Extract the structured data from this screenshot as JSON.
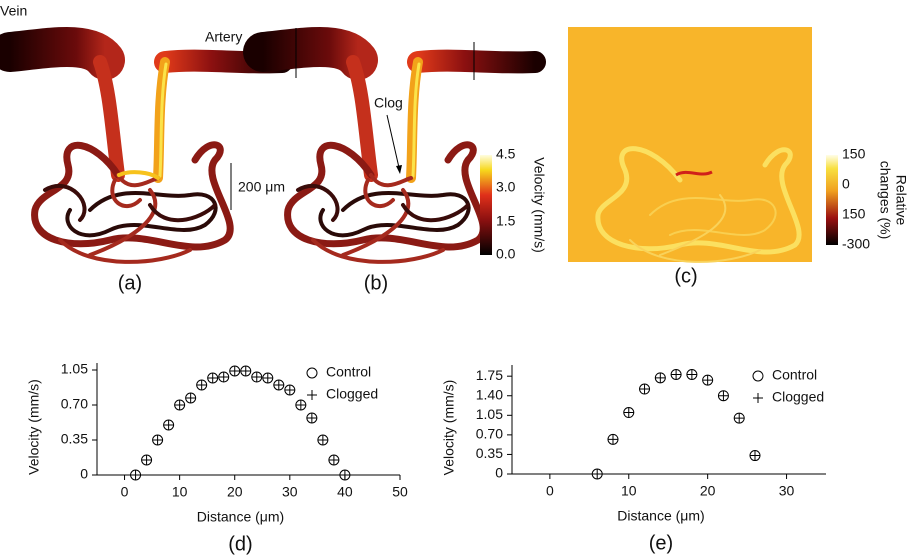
{
  "figure": {
    "vein": "Vein",
    "artery": "Artery",
    "clog": "Clog",
    "scale": "200 μm",
    "panels": [
      "(a)",
      "(b)",
      "(c)"
    ],
    "colorbar_velocity": {
      "title": "Velocity (mm/s)",
      "ticks": [
        "4.5",
        "3.0",
        "1.5",
        "0.0"
      ]
    },
    "colorbar_relative": {
      "title": [
        "Relative",
        "changes (%)"
      ],
      "ticks": [
        "150",
        "0",
        "150",
        "-300"
      ]
    }
  },
  "chart_data": [
    {
      "type": "scatter",
      "label": "(d)",
      "xlabel": "Distance (μm)",
      "ylabel": "Velocity (mm/s)",
      "xlim": [
        -5,
        50
      ],
      "ylim": [
        0,
        1.12
      ],
      "xticks": [
        0,
        10,
        20,
        30,
        40,
        50
      ],
      "yticks": [
        0,
        0.35,
        {
          "value": 0.7,
          "label": "0.70"
        },
        1.05
      ],
      "x": [
        2,
        4,
        6,
        8,
        10,
        12,
        14,
        16,
        18,
        20,
        22,
        24,
        26,
        28,
        30,
        32,
        34,
        36,
        38,
        40
      ],
      "series": [
        {
          "name": "Control",
          "marker": "circle",
          "color": "#000000",
          "values": [
            0,
            0.15,
            0.35,
            0.5,
            0.7,
            0.77,
            0.9,
            0.97,
            0.98,
            1.04,
            1.04,
            0.98,
            0.97,
            0.9,
            0.85,
            0.7,
            0.57,
            0.35,
            0.15,
            0
          ]
        },
        {
          "name": "Clogged",
          "marker": "plus",
          "color": "#000000",
          "values": [
            0,
            0.15,
            0.35,
            0.5,
            0.7,
            0.77,
            0.9,
            0.97,
            0.98,
            1.04,
            1.04,
            0.98,
            0.97,
            0.9,
            0.85,
            0.7,
            0.57,
            0.35,
            0.15,
            0
          ]
        }
      ]
    },
    {
      "type": "scatter",
      "label": "(e)",
      "xlabel": "Distance (μm)",
      "ylabel": "Velocity (mm/s)",
      "xlim": [
        -4.8,
        35
      ],
      "ylim": [
        0,
        1.95
      ],
      "xticks": [
        0,
        10,
        20,
        30
      ],
      "yticks": [
        0,
        0.35,
        {
          "value": 0.7,
          "label": "0.70"
        },
        1.05,
        {
          "value": 1.4,
          "label": "1.40"
        },
        1.75
      ],
      "x": [
        6,
        8,
        10,
        12,
        14,
        16,
        18,
        20,
        22,
        24,
        26
      ],
      "series": [
        {
          "name": "Control",
          "marker": "circle",
          "color": "#000000",
          "values": [
            0,
            0.62,
            1.1,
            1.52,
            1.72,
            1.78,
            1.78,
            1.68,
            1.4,
            1.0,
            0.33
          ]
        },
        {
          "name": "Clogged",
          "marker": "plus",
          "color": "#000000",
          "values": [
            0,
            0.62,
            1.1,
            1.52,
            1.72,
            1.78,
            1.78,
            1.68,
            1.4,
            1.0,
            0.33
          ]
        }
      ]
    }
  ]
}
